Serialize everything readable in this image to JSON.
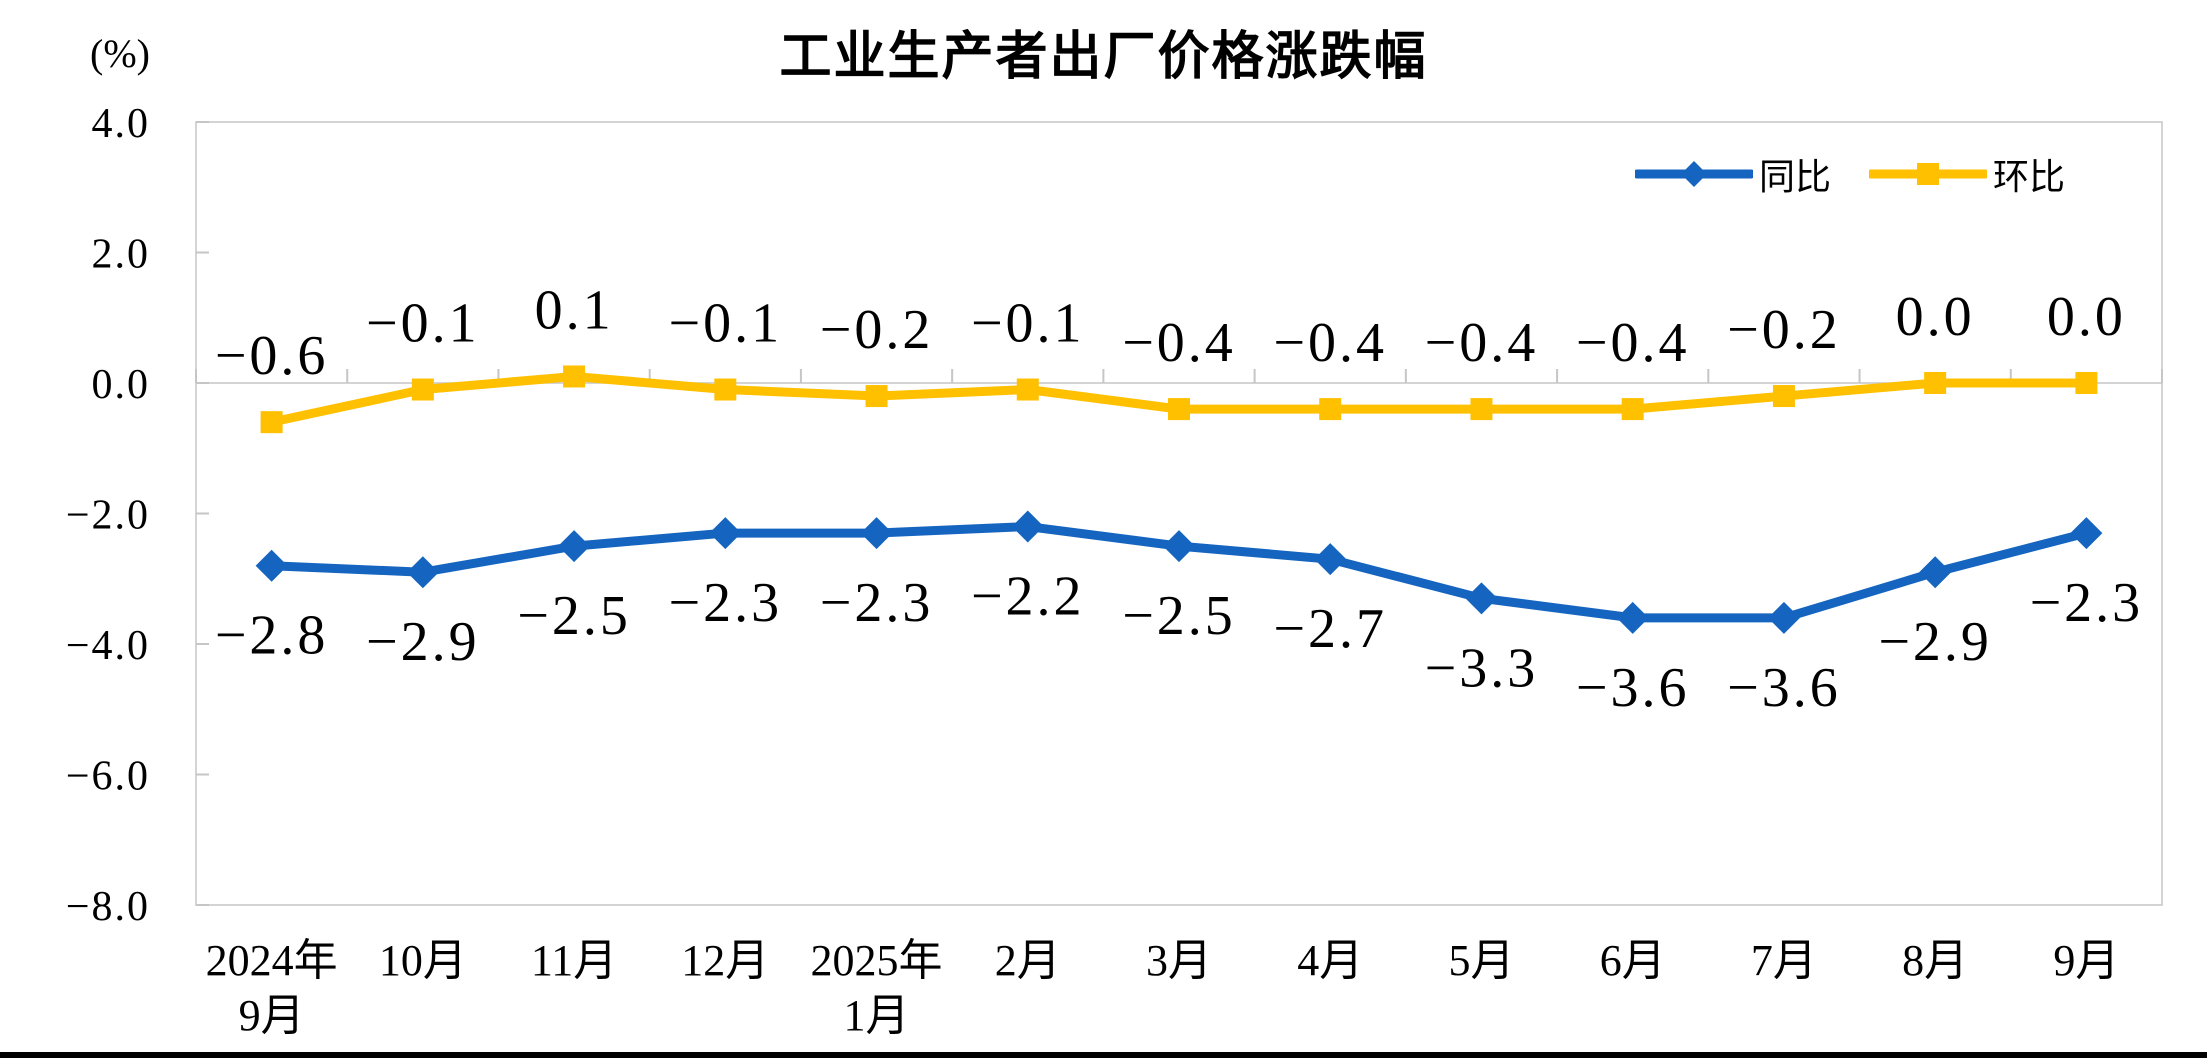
{
  "page": {
    "background_color": "#ffffff",
    "bottom_divider_color": "#000000"
  },
  "chart_data": {
    "type": "line",
    "title": "工业生产者出厂价格涨跌幅",
    "unit_label": "(%)",
    "categories": [
      "2024年\n9月",
      "10月",
      "11月",
      "12月",
      "2025年\n1月",
      "2月",
      "3月",
      "4月",
      "5月",
      "6月",
      "7月",
      "8月",
      "9月"
    ],
    "series": [
      {
        "name": "同比",
        "marker": "diamond",
        "color": "#1565C0",
        "label_side": "below",
        "values": [
          -2.8,
          -2.9,
          -2.5,
          -2.3,
          -2.3,
          -2.2,
          -2.5,
          -2.7,
          -3.3,
          -3.6,
          -3.6,
          -2.9,
          -2.3
        ]
      },
      {
        "name": "环比",
        "marker": "square",
        "color": "#FFC000",
        "label_side": "above",
        "values": [
          -0.6,
          -0.1,
          0.1,
          -0.1,
          -0.2,
          -0.1,
          -0.4,
          -0.4,
          -0.4,
          -0.4,
          -0.2,
          0.0,
          0.0
        ]
      }
    ],
    "ylim": [
      -8,
      4
    ],
    "yticks": [
      4.0,
      2.0,
      0.0,
      -2.0,
      -4.0,
      -6.0,
      -8.0
    ],
    "grid": false,
    "legend_position": "top-right",
    "axis_color": "#C6C6C6",
    "label_color": "#000000"
  }
}
